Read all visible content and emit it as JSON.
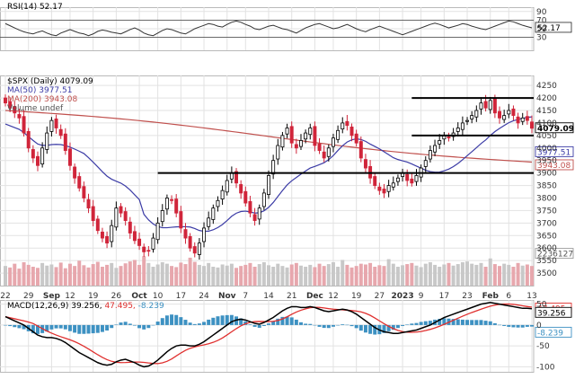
{
  "colors": {
    "grid": "#e2e2e2",
    "frame": "#b9b9b9",
    "up": "#000000",
    "down": "#d0253a",
    "ma50": "#3c3ca6",
    "ma200": "#c0504d",
    "volume_up": "#c8c8c8",
    "volume_down": "#e7a7ad",
    "macd_line": "#000000",
    "signal_line": "#e0302f",
    "histogram": "#3d91c2",
    "support_line": "#000000",
    "label_box": "#ffffff"
  },
  "chart_data": [
    {
      "id": "rsi",
      "type": "line",
      "legend": "RSI(14) 52.17",
      "ylim": [
        0,
        100
      ],
      "levels": [
        70,
        30
      ],
      "y_ticks": [
        90,
        70,
        50,
        30
      ],
      "current_label": "52.17",
      "values": [
        62,
        57,
        52,
        47,
        43,
        40,
        38,
        42,
        45,
        40,
        36,
        34,
        40,
        44,
        48,
        44,
        40,
        38,
        34,
        38,
        44,
        47,
        45,
        42,
        40,
        38,
        43,
        48,
        52,
        47,
        40,
        36,
        34,
        40,
        46,
        50,
        48,
        44,
        40,
        38,
        44,
        50,
        54,
        58,
        62,
        60,
        56,
        54,
        60,
        65,
        68,
        65,
        60,
        56,
        50,
        48,
        52,
        56,
        58,
        54,
        50,
        48,
        44,
        40,
        46,
        52,
        56,
        60,
        62,
        58,
        54,
        50,
        52,
        56,
        60,
        55,
        50,
        46,
        43,
        48,
        52,
        56,
        52,
        48,
        44,
        40,
        36,
        40,
        44,
        48,
        52,
        56,
        60,
        63,
        60,
        56,
        52,
        55,
        58,
        62,
        60,
        56,
        53,
        50,
        48,
        52,
        56,
        60,
        64,
        68,
        66,
        62,
        58,
        55,
        52
      ]
    },
    {
      "id": "price",
      "type": "candlestick",
      "legend": {
        "symbol": "$SPX (Daily) 4079.09",
        "ma50": "MA(50) 3977.51",
        "ma200": "MA(200) 3943.08",
        "volume": "Volume undef"
      },
      "ylim": [
        3450,
        4290
      ],
      "y_ticks": [
        4250,
        4200,
        4150,
        4100,
        4050,
        4000,
        3950,
        3900,
        3850,
        3800,
        3750,
        3700,
        3650,
        3600,
        3550,
        3500
      ],
      "price_labels": {
        "last": "4079.09",
        "ma50": "3977.51",
        "ma200": "3943.08",
        "volume": "2236127"
      },
      "x_ticks": [
        "22",
        "29",
        "Sep",
        "12",
        "19",
        "26",
        "Oct",
        "10",
        "17",
        "24",
        "Nov",
        "7",
        "14",
        "21",
        "Dec",
        "12",
        "19",
        "27",
        "2023",
        "9",
        "17",
        "23",
        "Feb",
        "6",
        "13"
      ],
      "x_ticks_bold": [
        "Sep",
        "Oct",
        "Nov",
        "Dec",
        "2023",
        "Feb"
      ],
      "support_lines": [
        4200,
        4050,
        3900
      ],
      "close": [
        4180,
        4160,
        4140,
        4120,
        4060,
        4000,
        3960,
        3930,
        4000,
        4060,
        4110,
        4080,
        4050,
        3990,
        3930,
        3880,
        3840,
        3800,
        3760,
        3710,
        3670,
        3640,
        3620,
        3690,
        3760,
        3740,
        3710,
        3660,
        3630,
        3610,
        3585,
        3590,
        3640,
        3700,
        3750,
        3800,
        3790,
        3740,
        3680,
        3640,
        3600,
        3580,
        3620,
        3680,
        3720,
        3760,
        3790,
        3830,
        3870,
        3900,
        3860,
        3820,
        3780,
        3740,
        3710,
        3760,
        3820,
        3890,
        3950,
        4010,
        4050,
        4080,
        4020,
        4000,
        4030,
        4060,
        4080,
        4010,
        3990,
        3960,
        4000,
        4040,
        4070,
        4100,
        4090,
        4050,
        4020,
        3960,
        3920,
        3880,
        3850,
        3830,
        3820,
        3850,
        3860,
        3880,
        3900,
        3870,
        3860,
        3890,
        3920,
        3950,
        3990,
        4010,
        4030,
        4050,
        4040,
        4060,
        4080,
        4100,
        4110,
        4130,
        4150,
        4180,
        4160,
        4190,
        4140,
        4120,
        4130,
        4150,
        4130,
        4100,
        4120,
        4110,
        4079
      ]
    },
    {
      "id": "volume",
      "type": "bar",
      "values": [
        0.52,
        0.48,
        0.58,
        0.45,
        0.62,
        0.55,
        0.5,
        0.47,
        0.6,
        0.53,
        0.56,
        0.49,
        0.61,
        0.46,
        0.58,
        0.52,
        0.66,
        0.54,
        0.48,
        0.57,
        0.63,
        0.5,
        0.55,
        0.6,
        0.47,
        0.52,
        0.59,
        0.64,
        0.68,
        0.55,
        0.78,
        0.6,
        0.5,
        0.56,
        0.62,
        0.58,
        0.52,
        0.49,
        0.61,
        0.57,
        0.74,
        0.63,
        0.55,
        0.52,
        0.6,
        0.5,
        0.48,
        0.56,
        0.53,
        0.58,
        0.47,
        0.52,
        0.55,
        0.6,
        0.5,
        0.57,
        0.62,
        0.54,
        0.5,
        0.58,
        0.52,
        0.48,
        0.56,
        0.6,
        0.53,
        0.5,
        0.55,
        0.49,
        0.58,
        0.52,
        0.57,
        0.62,
        0.5,
        0.68,
        0.55,
        0.48,
        0.52,
        0.58,
        0.56,
        0.6,
        0.5,
        0.54,
        0.52,
        0.7,
        0.58,
        0.5,
        0.54,
        0.57,
        0.6,
        0.53,
        0.49,
        0.58,
        0.62,
        0.55,
        0.5,
        0.56,
        0.6,
        0.53,
        0.57,
        0.62,
        0.64,
        0.58,
        0.55,
        0.6,
        0.5,
        0.72,
        0.57,
        0.52,
        0.58,
        0.55,
        0.5,
        0.6,
        0.53,
        0.56,
        0.52
      ]
    },
    {
      "id": "macd",
      "type": "line",
      "legend": {
        "prefix": "MACD(12,26,9)",
        "macd": "39.256",
        "signal": "47.495",
        "hist": "-8.239"
      },
      "ylim": [
        -112,
        60
      ],
      "y_ticks": [
        50,
        0,
        -50,
        -100
      ],
      "price_labels": {
        "macd": "39.256",
        "signal": "47.495",
        "hist": "-8.239"
      },
      "macd_values": [
        20,
        15,
        10,
        5,
        0,
        -8,
        -16,
        -24,
        -28,
        -30,
        -30,
        -32,
        -36,
        -42,
        -50,
        -58,
        -66,
        -72,
        -78,
        -84,
        -90,
        -94,
        -96,
        -94,
        -88,
        -84,
        -82,
        -86,
        -90,
        -96,
        -100,
        -98,
        -92,
        -84,
        -74,
        -64,
        -56,
        -50,
        -48,
        -48,
        -50,
        -50,
        -46,
        -40,
        -32,
        -24,
        -16,
        -8,
        0,
        8,
        12,
        14,
        12,
        8,
        4,
        2,
        6,
        12,
        18,
        26,
        34,
        40,
        44,
        44,
        42,
        42,
        44,
        42,
        38,
        34,
        32,
        34,
        36,
        38,
        36,
        32,
        26,
        18,
        10,
        2,
        -6,
        -12,
        -16,
        -18,
        -20,
        -20,
        -18,
        -16,
        -14,
        -12,
        -8,
        -4,
        0,
        6,
        12,
        18,
        22,
        26,
        30,
        34,
        38,
        42,
        46,
        50,
        52,
        54,
        52,
        50,
        48,
        46,
        44,
        42,
        40,
        40,
        39
      ]
    }
  ]
}
